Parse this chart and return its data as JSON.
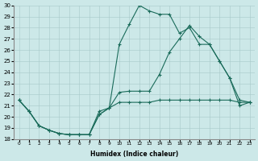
{
  "xlabel": "Humidex (Indice chaleur)",
  "xlim": [
    -0.5,
    23.5
  ],
  "ylim": [
    18,
    30
  ],
  "xticks": [
    0,
    1,
    2,
    3,
    4,
    5,
    6,
    7,
    8,
    9,
    10,
    11,
    12,
    13,
    14,
    15,
    16,
    17,
    18,
    19,
    20,
    21,
    22,
    23
  ],
  "yticks": [
    18,
    19,
    20,
    21,
    22,
    23,
    24,
    25,
    26,
    27,
    28,
    29,
    30
  ],
  "bg_color": "#cce8e8",
  "line_color": "#1a6b5a",
  "line1_x": [
    0,
    1,
    2,
    3,
    4,
    5,
    6,
    7,
    8,
    9,
    10,
    11,
    12,
    13,
    14,
    15,
    16,
    17,
    18,
    19,
    20,
    21,
    22,
    23
  ],
  "line1_y": [
    21.5,
    20.5,
    19.2,
    18.8,
    18.5,
    18.4,
    18.4,
    18.4,
    20.5,
    20.8,
    26.5,
    28.3,
    30.0,
    29.5,
    29.2,
    29.2,
    27.5,
    28.0,
    26.5,
    26.5,
    25.0,
    23.5,
    21.5,
    21.3
  ],
  "line2_x": [
    0,
    1,
    2,
    3,
    4,
    5,
    6,
    7,
    8,
    9,
    10,
    11,
    12,
    13,
    14,
    15,
    16,
    17,
    18,
    19,
    20,
    21,
    22,
    23
  ],
  "line2_y": [
    21.5,
    20.5,
    19.2,
    18.8,
    18.5,
    18.4,
    18.4,
    18.4,
    20.2,
    20.8,
    22.2,
    22.3,
    22.3,
    22.3,
    23.8,
    25.8,
    27.0,
    28.2,
    27.2,
    26.5,
    25.0,
    23.5,
    21.0,
    21.3
  ],
  "line3_x": [
    0,
    1,
    2,
    3,
    4,
    5,
    6,
    7,
    8,
    9,
    10,
    11,
    12,
    13,
    14,
    15,
    16,
    17,
    18,
    19,
    20,
    21,
    22,
    23
  ],
  "line3_y": [
    21.5,
    20.5,
    19.2,
    18.8,
    18.5,
    18.4,
    18.4,
    18.4,
    20.2,
    20.8,
    21.3,
    21.3,
    21.3,
    21.3,
    21.5,
    21.5,
    21.5,
    21.5,
    21.5,
    21.5,
    21.5,
    21.5,
    21.3,
    21.3
  ]
}
